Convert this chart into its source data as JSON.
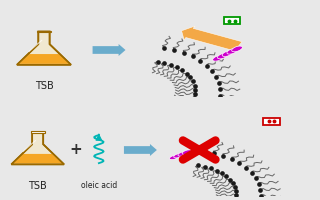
{
  "panel_bg": "#ffffff",
  "fig_bg": "#e8e8e8",
  "panel_border": "#bbbbbb",
  "flask_body_color": "#f5a623",
  "flask_liquid_color": "#e07b10",
  "flask_outline_color": "#9a6900",
  "flask_glass_color": "#f0e8d0",
  "arrow_color": "#6aaccc",
  "orange_arrow_color": "#f5a030",
  "peptide_color": "#cc00cc",
  "red_x_color": "#dd0000",
  "green_box_color": "#009900",
  "red_box_color": "#cc0000",
  "teal_wave_color": "#00b5b5",
  "lipid_head_color": "#1a1a1a",
  "lipid_tail_color": "#666666",
  "tsb_label": "TSB",
  "oleic_label": "oleic acid",
  "fig_width": 3.2,
  "fig_height": 2.0,
  "dpi": 100
}
